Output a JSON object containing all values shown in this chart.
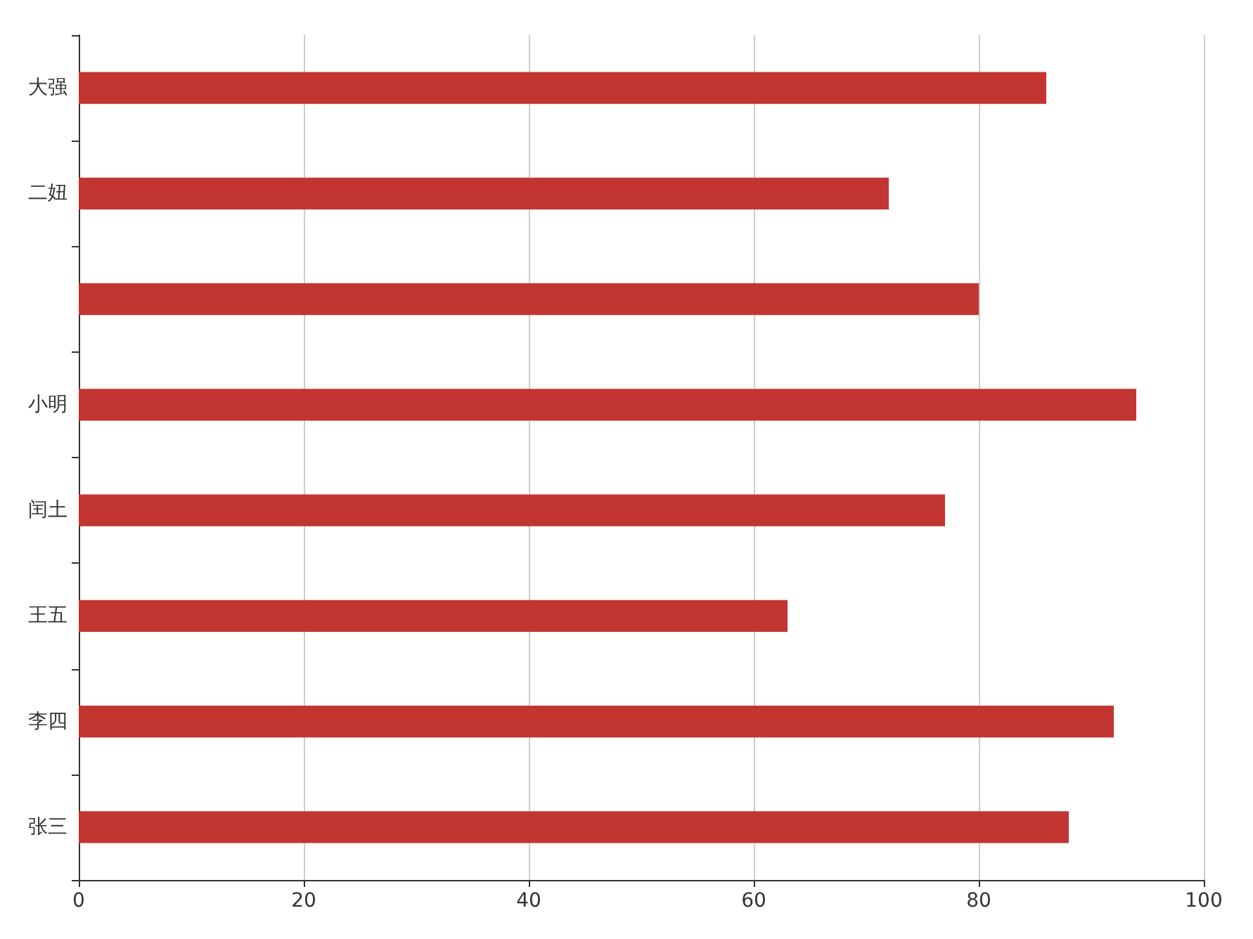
{
  "chart_data": {
    "type": "bar",
    "orientation": "horizontal",
    "categories": [
      "大强",
      "二妞",
      null,
      "小明",
      "闰土",
      "王五",
      "李四",
      "张三"
    ],
    "values": [
      86,
      72,
      80,
      94,
      77,
      63,
      92,
      88
    ],
    "color": "#c23531",
    "xlim": [
      0,
      100
    ],
    "xticks": [
      0,
      20,
      40,
      60,
      80,
      100
    ],
    "grid": "x"
  }
}
